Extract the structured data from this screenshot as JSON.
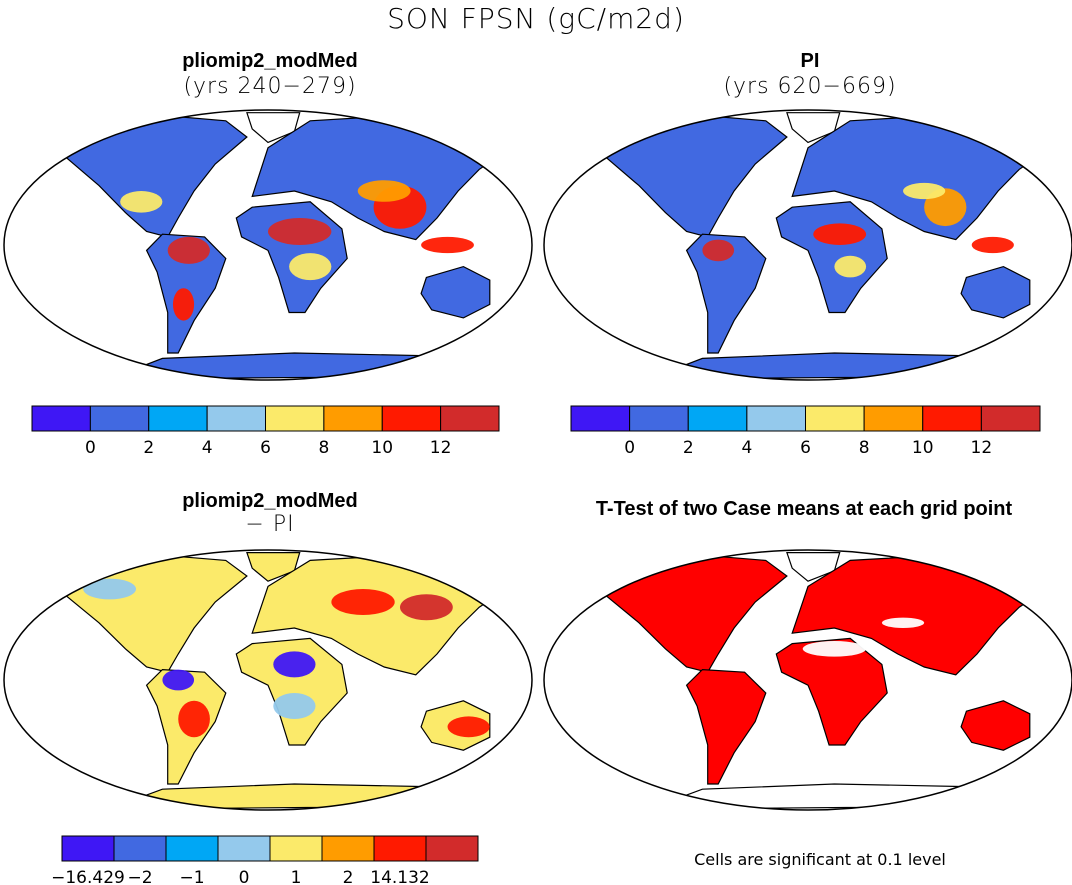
{
  "title": "SON FPSN (gC/m2d)",
  "panels": [
    {
      "title": "pliomip2_modMed",
      "subtitle": "(yrs 240−279)"
    },
    {
      "title": "PI",
      "subtitle": "(yrs 620−669)"
    },
    {
      "title": "pliomip2_modMed",
      "subtitle": "− PI"
    },
    {
      "title": "T-Test of two Case means at each grid point",
      "subtitle": ""
    }
  ],
  "colorbar_abs": {
    "colors": [
      "#3f17f5",
      "#4169e1",
      "#00a7f5",
      "#94c9ec",
      "#fbea6a",
      "#ff9c00",
      "#ff1a00",
      "#d22b2b"
    ],
    "labels": [
      "0",
      "2",
      "4",
      "6",
      "8",
      "10",
      "12"
    ]
  },
  "colorbar_diff": {
    "colors": [
      "#3f17f5",
      "#4169e1",
      "#00a7f5",
      "#94c9ec",
      "#fbea6a",
      "#ff9c00",
      "#ff1a00",
      "#d22b2b"
    ],
    "labels": [
      "−16.429",
      "−2",
      "−1",
      "0",
      "1",
      "2",
      "14.132"
    ]
  },
  "note": "Cells are significant at 0.1 level",
  "map_colors": {
    "ocean": "#ffffff",
    "land_low": "#4169e1",
    "land_mid": "#fbea6a",
    "land_high": "#ff1a00",
    "sig": "#ff0000"
  }
}
